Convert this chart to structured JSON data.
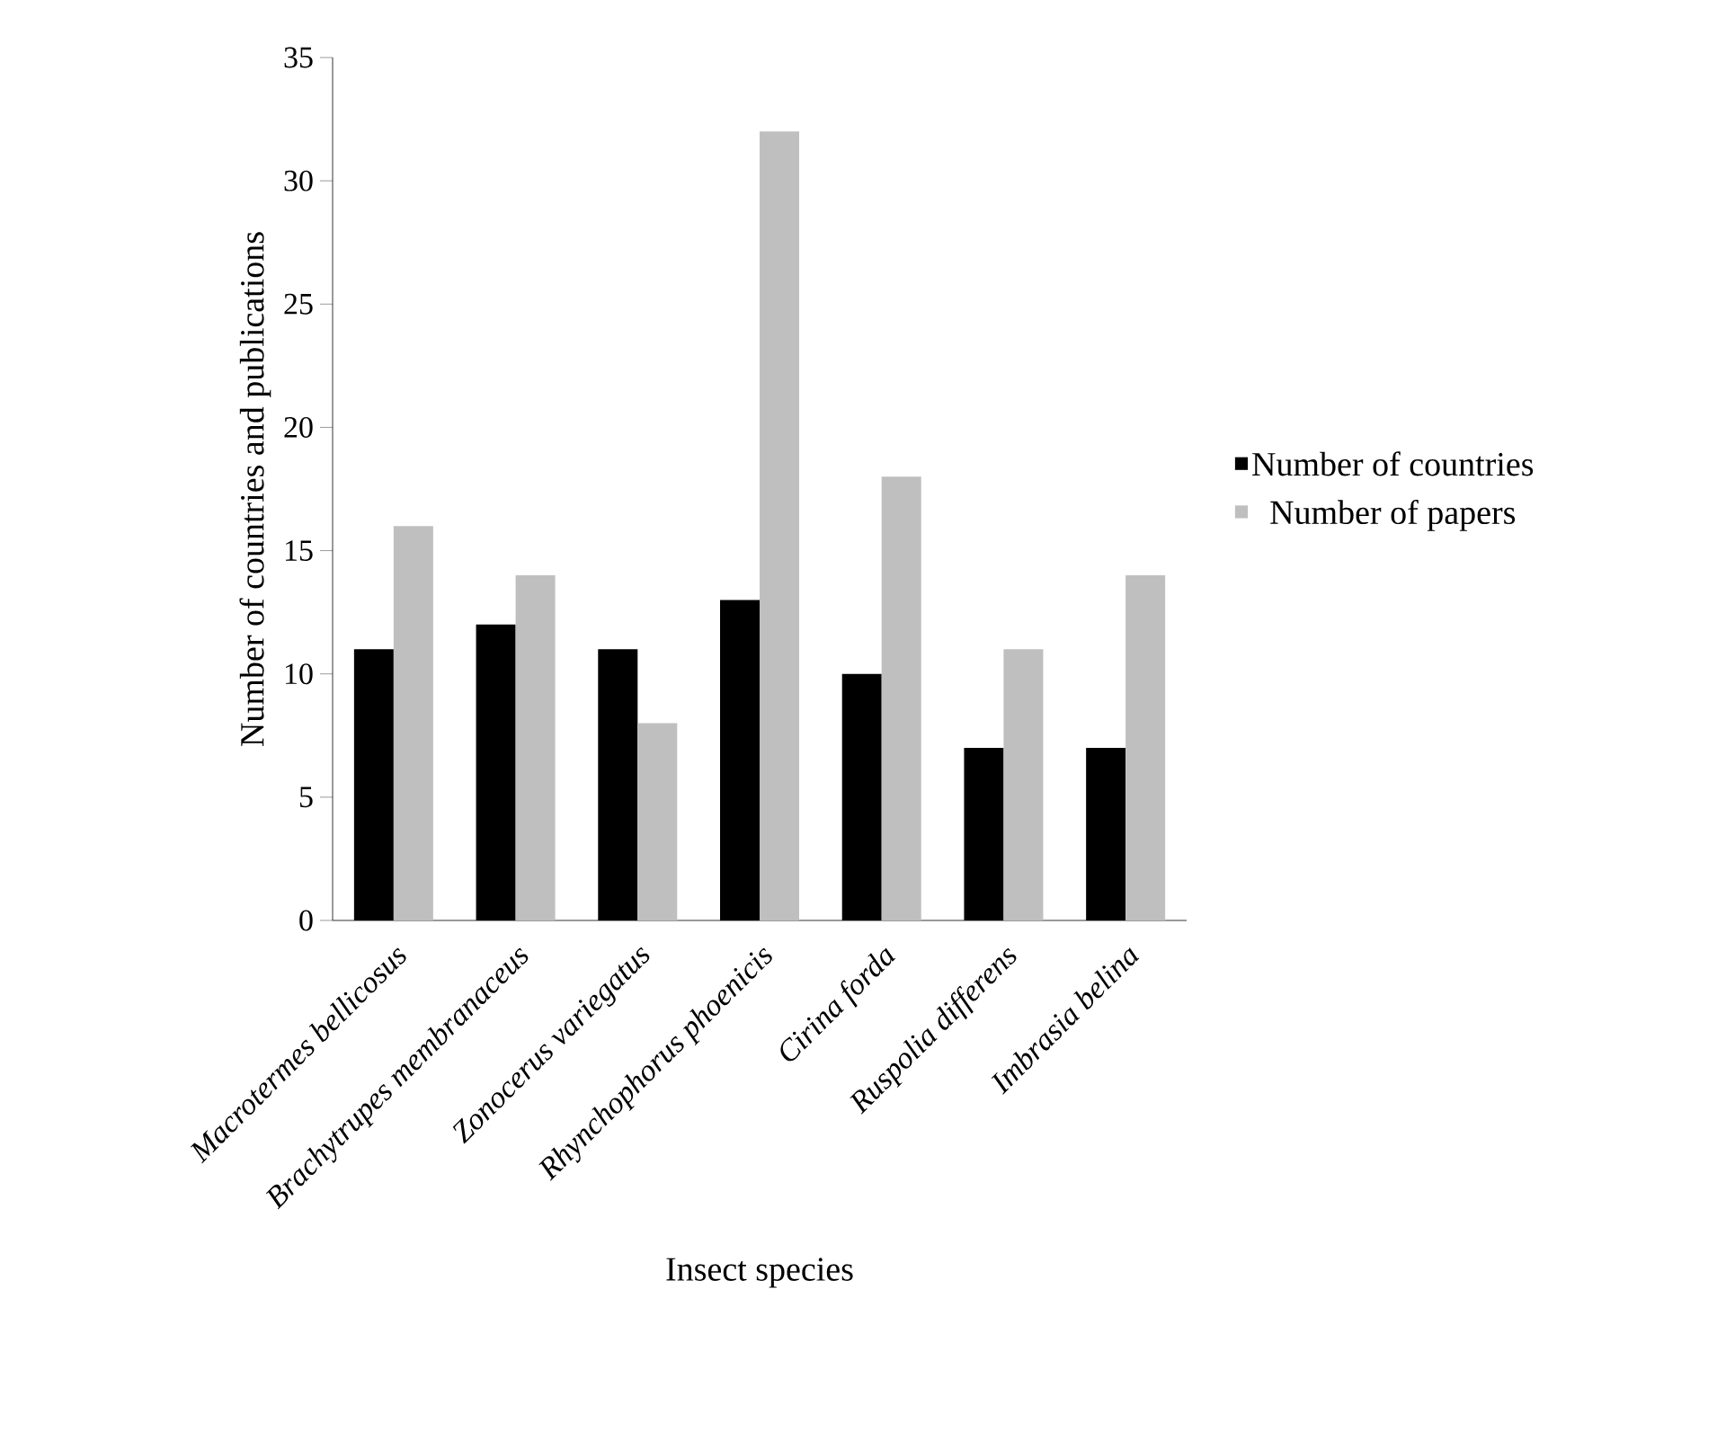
{
  "chart_data": {
    "type": "bar",
    "xlabel": "Insect species",
    "ylabel": "Number of countries and publications",
    "categories": [
      "Macrotermes bellicosus",
      "Brachytrupes membranaceus",
      "Zonocerus variegatus",
      "Rhynchophorus phoenicis",
      "Cirina forda",
      "Ruspolia differens",
      "Imbrasia belina"
    ],
    "series": [
      {
        "name": "Number of countries",
        "color": "#000000",
        "values": [
          11,
          12,
          11,
          13,
          10,
          7,
          7
        ]
      },
      {
        "name": "Number of papers",
        "color": "#bfbfbf",
        "values": [
          16,
          14,
          8,
          32,
          18,
          11,
          14
        ]
      }
    ],
    "ylim": [
      0,
      35
    ],
    "yticks": [
      0,
      5,
      10,
      15,
      20,
      25,
      30,
      35
    ],
    "legend": "right"
  }
}
